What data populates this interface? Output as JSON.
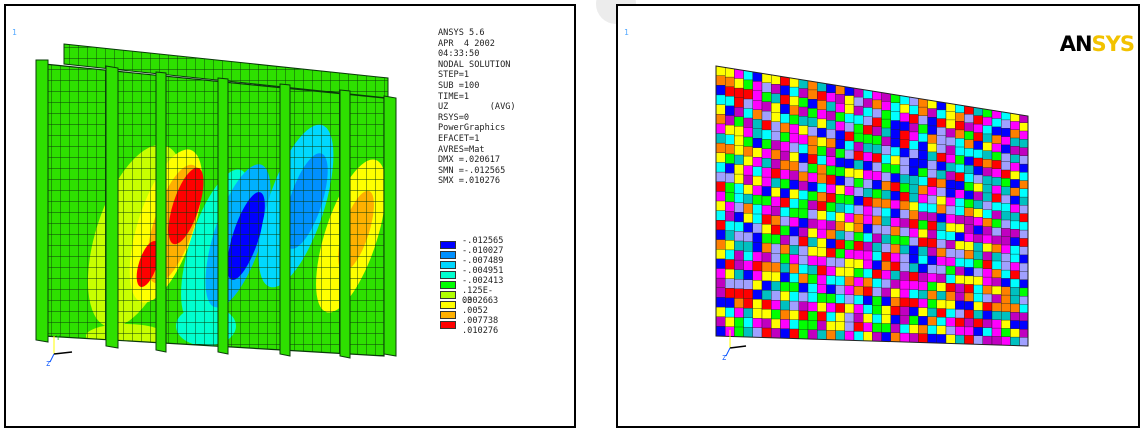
{
  "left_panel": {
    "corner_label": "1",
    "info_lines": [
      "ANSYS 5.6",
      "APR  4 2002",
      "04:33:50",
      "NODAL SOLUTION",
      "STEP=1",
      "SUB =100",
      "TIME=1",
      "UZ        (AVG)",
      "RSYS=0",
      "PowerGraphics",
      "EFACET=1",
      "AVRES=Mat",
      "DMX =.020617",
      "SMN =-.012565",
      "SMX =.010276"
    ],
    "legend": [
      {
        "label": "-.012565",
        "color": "#0000ff"
      },
      {
        "label": "-.010027",
        "color": "#0090ff"
      },
      {
        "label": "-.007489",
        "color": "#00d8ff"
      },
      {
        "label": "-.004951",
        "color": "#00ffd0"
      },
      {
        "label": "-.002413",
        "color": "#00ff00"
      },
      {
        "label": ".125E-03",
        "color": "#b0ff00"
      },
      {
        "label": ".002663",
        "color": "#ffff00"
      },
      {
        "label": ".0052",
        "color": "#ffb000"
      },
      {
        "label": ".007738",
        "color": "#ff0000"
      },
      {
        "label": ".010276",
        "color": ""
      }
    ]
  },
  "right_panel": {
    "corner_label": "1",
    "logo_main": "AN",
    "logo_accent": "SYS"
  },
  "colors": {
    "mesh_green": "#2ee000",
    "mesh_line": "#0a3a0a",
    "logo_accent": "#f2c200"
  }
}
